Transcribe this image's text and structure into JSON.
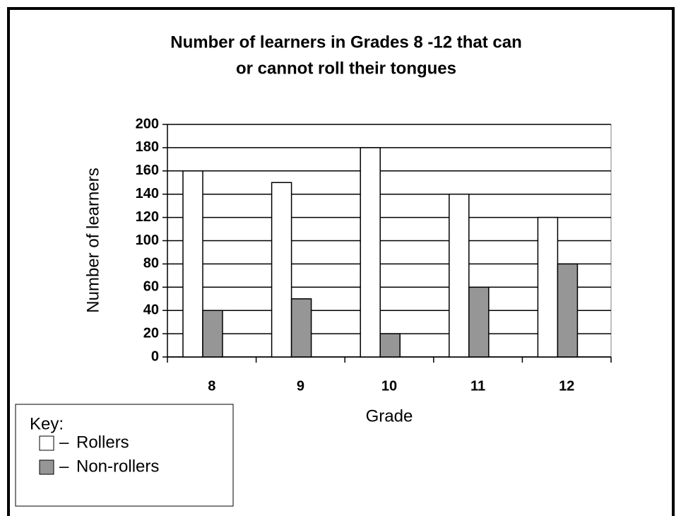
{
  "chart_data": {
    "type": "bar",
    "title": [
      "Number of learners in Grades 8 -12 that can",
      "or cannot roll their tongues"
    ],
    "x_label": "Grade",
    "y_label": "Number of learners",
    "legend_title": "Key:",
    "categories": [
      "8",
      "9",
      "10",
      "11",
      "12"
    ],
    "series": [
      {
        "name": "Rollers",
        "color": "#ffffff",
        "values": [
          160,
          150,
          180,
          140,
          120
        ]
      },
      {
        "name": "Non-rollers",
        "color": "#969696",
        "values": [
          40,
          50,
          20,
          60,
          80
        ]
      }
    ],
    "ylim": [
      0,
      200
    ],
    "yticks": [
      0,
      20,
      40,
      60,
      80,
      100,
      120,
      140,
      160,
      180,
      200
    ],
    "grid": true
  }
}
